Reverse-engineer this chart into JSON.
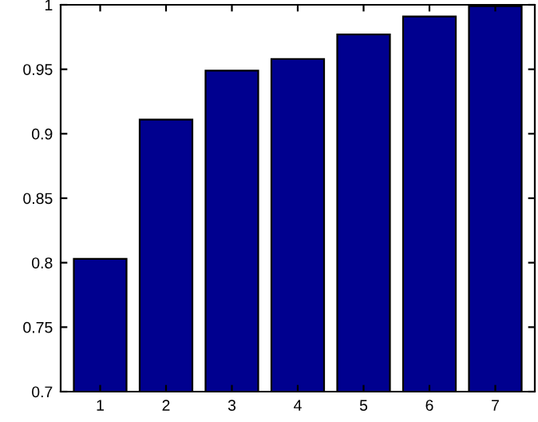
{
  "chart_data": {
    "type": "bar",
    "categories": [
      "1",
      "2",
      "3",
      "4",
      "5",
      "6",
      "7"
    ],
    "values": [
      0.803,
      0.911,
      0.949,
      0.958,
      0.977,
      0.991,
      0.999
    ],
    "color": "#00008f",
    "ylim": [
      0.7,
      1
    ],
    "yticks": [
      0.7,
      0.75,
      0.8,
      0.85,
      0.9,
      0.95,
      1
    ],
    "grid": false
  }
}
